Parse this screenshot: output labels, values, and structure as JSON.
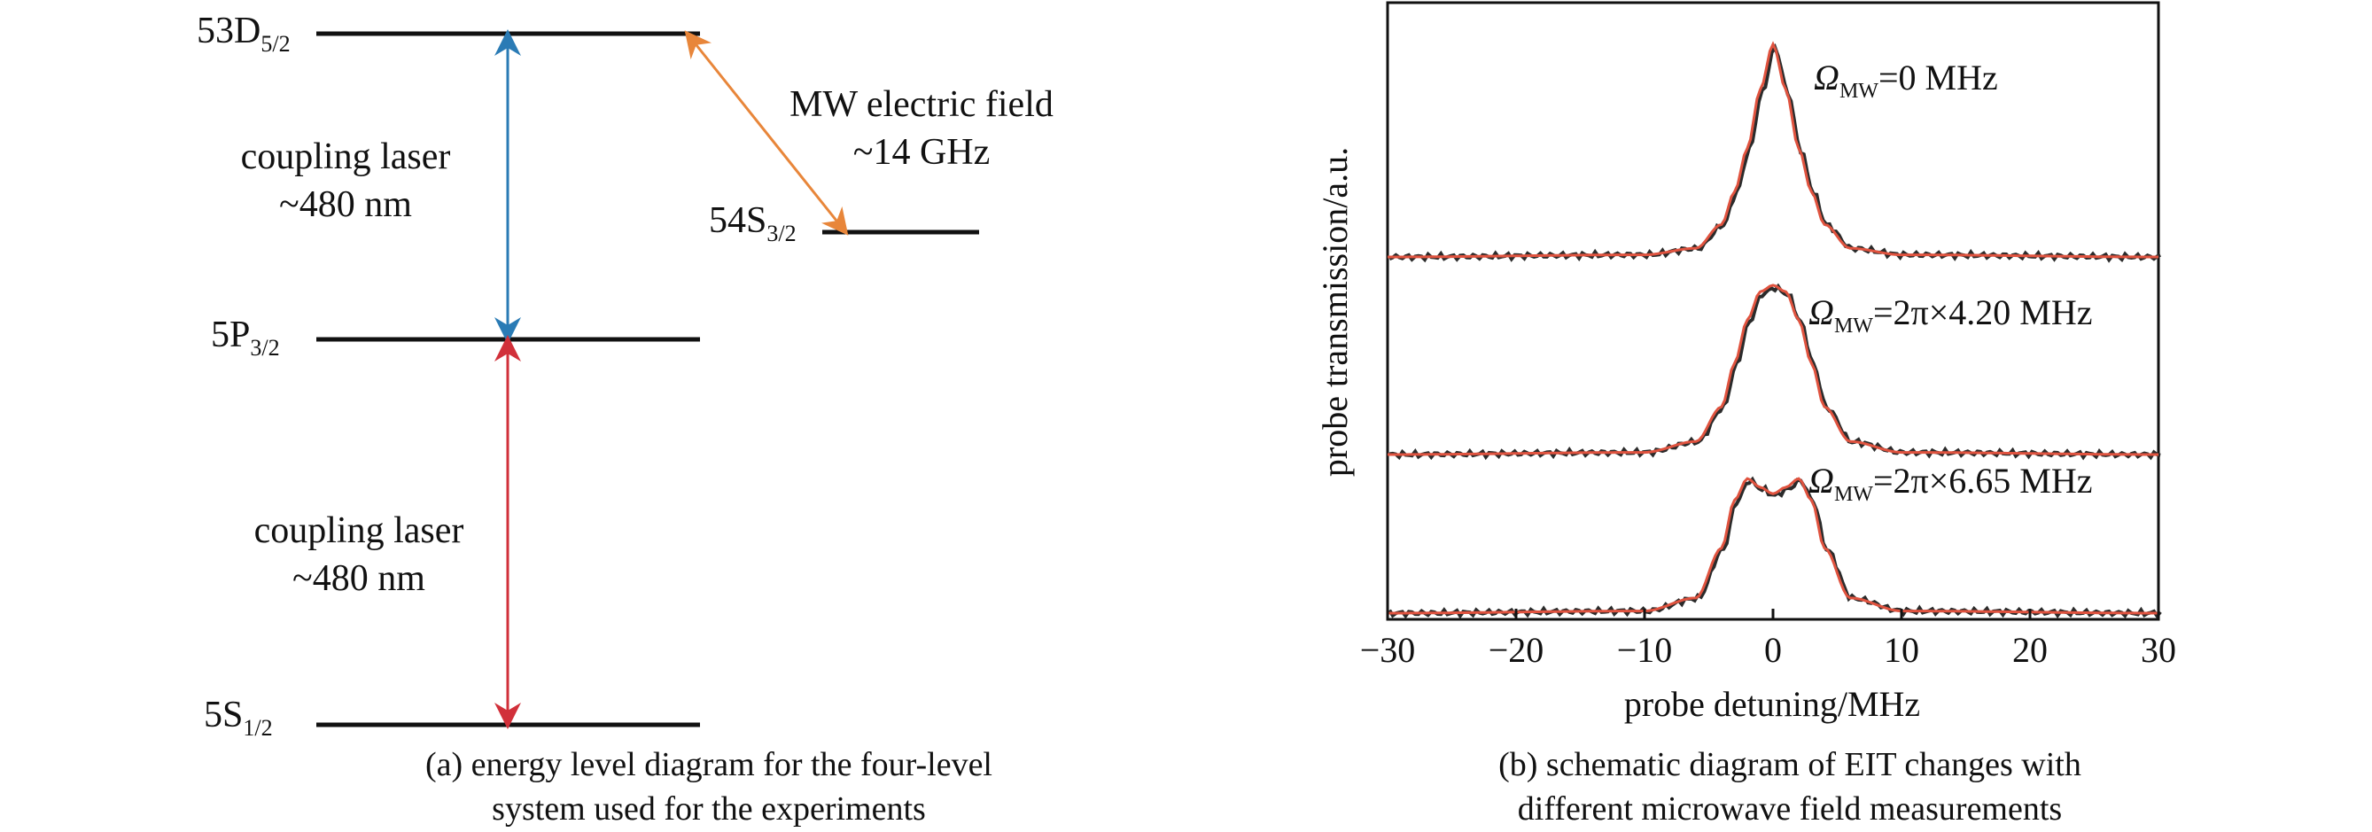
{
  "panel_a": {
    "levels": [
      {
        "id": "53D",
        "base": "53D",
        "sub": "5/2"
      },
      {
        "id": "54S",
        "base": "54S",
        "sub": "3/2"
      },
      {
        "id": "5P",
        "base": "5P",
        "sub": "3/2"
      },
      {
        "id": "5S",
        "base": "5S",
        "sub": "1/2"
      }
    ],
    "upper_transition": {
      "line1": "coupling laser",
      "line2": "~480 nm",
      "color": "#2a7bb5"
    },
    "lower_transition": {
      "line1": "coupling laser",
      "line2": "~480 nm",
      "color": "#d1303a"
    },
    "mw_transition": {
      "line1": "MW electric field",
      "line2": "~14 GHz",
      "color": "#e8863a"
    },
    "caption_line1": "(a) energy level diagram for the four-level",
    "caption_line2": "system used for the experiments"
  },
  "panel_b": {
    "caption_line1": "(b) schematic diagram of EIT changes with",
    "caption_line2": "different microwave field measurements",
    "chart_data": {
      "type": "line",
      "xlabel": "probe detuning/MHz",
      "ylabel": "probe transmission/a.u.",
      "xlim": [
        -30,
        30
      ],
      "xticks": [
        "−30",
        "−20",
        "−10",
        "0",
        "10",
        "20",
        "30"
      ],
      "yticks": [],
      "grid": false,
      "colors": {
        "measured": "#2b2b2b",
        "fit": "#e0533f"
      },
      "traces": [
        {
          "label_symbol": "Ω",
          "label_sub": "MW",
          "label_value": "=0 MHz",
          "omega_mhz": 0,
          "x": [
            -30,
            -10,
            -6,
            -4,
            -3,
            -2,
            -1,
            0,
            1,
            2,
            3,
            4,
            6,
            10,
            30
          ],
          "y": [
            0,
            0.01,
            0.04,
            0.15,
            0.3,
            0.5,
            0.77,
            0.98,
            0.77,
            0.5,
            0.3,
            0.15,
            0.04,
            0.01,
            0
          ]
        },
        {
          "label_symbol": "Ω",
          "label_sub": "MW",
          "label_value": "=2π×4.20 MHz",
          "omega_mhz": 4.2,
          "x": [
            -30,
            -10,
            -6,
            -4,
            -3,
            -2,
            -1,
            0,
            1,
            2,
            3,
            4,
            6,
            10,
            30
          ],
          "y": [
            0,
            0.01,
            0.06,
            0.22,
            0.42,
            0.62,
            0.75,
            0.78,
            0.75,
            0.62,
            0.42,
            0.22,
            0.06,
            0.01,
            0
          ]
        },
        {
          "label_symbol": "Ω",
          "label_sub": "MW",
          "label_value": "=2π×6.65 MHz",
          "omega_mhz": 6.65,
          "x": [
            -30,
            -10,
            -6,
            -4,
            -3,
            -2,
            -1,
            0,
            1,
            2,
            3,
            4,
            6,
            10,
            30
          ],
          "y": [
            0,
            0.01,
            0.07,
            0.3,
            0.52,
            0.62,
            0.58,
            0.55,
            0.58,
            0.62,
            0.52,
            0.3,
            0.07,
            0.01,
            0
          ]
        }
      ]
    }
  }
}
